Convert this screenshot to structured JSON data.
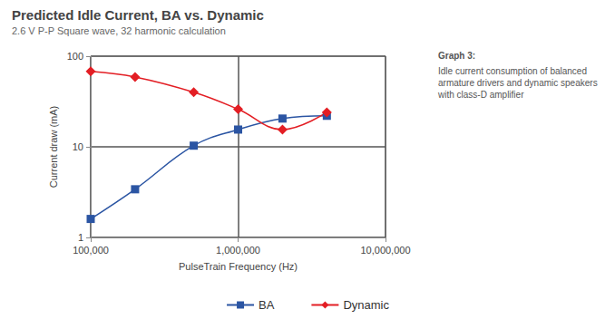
{
  "chart_data": {
    "type": "line",
    "title": "Predicted Idle Current, BA vs. Dynamic",
    "subtitle": "2.6 V P-P Square wave, 32 harmonic calculation",
    "annotations": [
      "Graph 3:",
      "Idle current consumption of balanced armature drivers and dynamic speakers with class-D amplifier"
    ],
    "x_label": "PulseTrain Frequency (Hz)",
    "y_label": "Current draw (mA)",
    "x": [
      100000,
      200000,
      500000,
      1000000,
      2000000,
      4000000
    ],
    "series": [
      {
        "name": "BA",
        "color": "#2b55a3",
        "marker": "square",
        "values": [
          1.6,
          3.4,
          10.3,
          15.5,
          20.5,
          22
        ]
      },
      {
        "name": "Dynamic",
        "color": "#e31e24",
        "marker": "diamond",
        "values": [
          68,
          59,
          40,
          26,
          15.5,
          24
        ]
      }
    ],
    "xlim": [
      100000,
      10000000
    ],
    "ylim": [
      1,
      100
    ],
    "xticks": [
      {
        "value": 100000,
        "label": "100,000"
      },
      {
        "value": 1000000,
        "label": "1,000,000"
      },
      {
        "value": 10000000,
        "label": "10,000,000"
      }
    ],
    "yticks": [
      1,
      10,
      100
    ],
    "log": true,
    "grid": true,
    "legend": "bottom"
  }
}
